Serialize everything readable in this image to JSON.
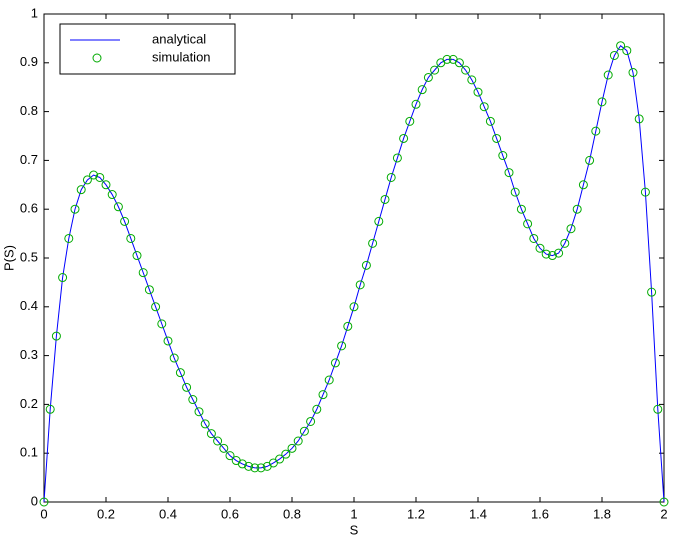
{
  "chart_data": {
    "type": "line_scatter",
    "xlabel": "S",
    "ylabel": "P(S)",
    "x": [
      0,
      0.02,
      0.04,
      0.06,
      0.08,
      0.1,
      0.12,
      0.14,
      0.16,
      0.18,
      0.2,
      0.22,
      0.24,
      0.26,
      0.28,
      0.3,
      0.32,
      0.34,
      0.36,
      0.38,
      0.4,
      0.42,
      0.44,
      0.46,
      0.48,
      0.5,
      0.52,
      0.54,
      0.56,
      0.58,
      0.6,
      0.62,
      0.64,
      0.66,
      0.68,
      0.7,
      0.72,
      0.74,
      0.76,
      0.78,
      0.8,
      0.82,
      0.84,
      0.86,
      0.88,
      0.9,
      0.92,
      0.94,
      0.96,
      0.98,
      1,
      1.02,
      1.04,
      1.06,
      1.08,
      1.1,
      1.12,
      1.14,
      1.16,
      1.18,
      1.2,
      1.22,
      1.24,
      1.26,
      1.28,
      1.3,
      1.32,
      1.34,
      1.36,
      1.38,
      1.4,
      1.42,
      1.44,
      1.46,
      1.48,
      1.5,
      1.52,
      1.54,
      1.56,
      1.58,
      1.6,
      1.62,
      1.64,
      1.66,
      1.68,
      1.7,
      1.72,
      1.74,
      1.76,
      1.78,
      1.8,
      1.82,
      1.84,
      1.86,
      1.88,
      1.9,
      1.92,
      1.94,
      1.96,
      1.98,
      2
    ],
    "series": [
      {
        "name": "analytical",
        "color": "#0000ff",
        "style": "line",
        "values": [
          0,
          0.19,
          0.34,
          0.46,
          0.54,
          0.6,
          0.64,
          0.66,
          0.67,
          0.665,
          0.65,
          0.63,
          0.605,
          0.575,
          0.54,
          0.505,
          0.47,
          0.435,
          0.4,
          0.365,
          0.33,
          0.295,
          0.265,
          0.235,
          0.21,
          0.185,
          0.16,
          0.14,
          0.125,
          0.11,
          0.095,
          0.085,
          0.078,
          0.073,
          0.07,
          0.07,
          0.073,
          0.08,
          0.088,
          0.098,
          0.11,
          0.125,
          0.145,
          0.165,
          0.19,
          0.22,
          0.25,
          0.285,
          0.32,
          0.36,
          0.4,
          0.445,
          0.485,
          0.53,
          0.575,
          0.62,
          0.665,
          0.705,
          0.745,
          0.78,
          0.815,
          0.845,
          0.87,
          0.885,
          0.9,
          0.907,
          0.907,
          0.9,
          0.885,
          0.865,
          0.84,
          0.81,
          0.78,
          0.745,
          0.71,
          0.675,
          0.635,
          0.6,
          0.57,
          0.54,
          0.52,
          0.508,
          0.505,
          0.51,
          0.53,
          0.56,
          0.6,
          0.65,
          0.7,
          0.76,
          0.82,
          0.875,
          0.915,
          0.935,
          0.925,
          0.88,
          0.785,
          0.635,
          0.43,
          0.19,
          0
        ]
      },
      {
        "name": "simulation",
        "color": "#00aa00",
        "style": "circle",
        "values": [
          0,
          0.19,
          0.34,
          0.46,
          0.54,
          0.6,
          0.64,
          0.66,
          0.67,
          0.665,
          0.65,
          0.63,
          0.605,
          0.575,
          0.54,
          0.505,
          0.47,
          0.435,
          0.4,
          0.365,
          0.33,
          0.295,
          0.265,
          0.235,
          0.21,
          0.185,
          0.16,
          0.14,
          0.125,
          0.11,
          0.095,
          0.085,
          0.078,
          0.073,
          0.07,
          0.07,
          0.073,
          0.08,
          0.088,
          0.098,
          0.11,
          0.125,
          0.145,
          0.165,
          0.19,
          0.22,
          0.25,
          0.285,
          0.32,
          0.36,
          0.4,
          0.445,
          0.485,
          0.53,
          0.575,
          0.62,
          0.665,
          0.705,
          0.745,
          0.78,
          0.815,
          0.845,
          0.87,
          0.885,
          0.9,
          0.907,
          0.907,
          0.9,
          0.885,
          0.865,
          0.84,
          0.81,
          0.78,
          0.745,
          0.71,
          0.675,
          0.635,
          0.6,
          0.57,
          0.54,
          0.52,
          0.508,
          0.505,
          0.51,
          0.53,
          0.56,
          0.6,
          0.65,
          0.7,
          0.76,
          0.82,
          0.875,
          0.915,
          0.935,
          0.925,
          0.88,
          0.785,
          0.635,
          0.43,
          0.19,
          0
        ]
      }
    ],
    "xlim": [
      0,
      2
    ],
    "xticks": [
      0,
      0.2,
      0.4,
      0.6,
      0.8,
      1,
      1.2,
      1.4,
      1.6,
      1.8,
      2
    ],
    "ylim": [
      0,
      1
    ],
    "yticks": [
      0,
      0.1,
      0.2,
      0.3,
      0.4,
      0.5,
      0.6,
      0.7,
      0.8,
      0.9,
      1
    ],
    "grid": false,
    "legend": "upper left"
  }
}
